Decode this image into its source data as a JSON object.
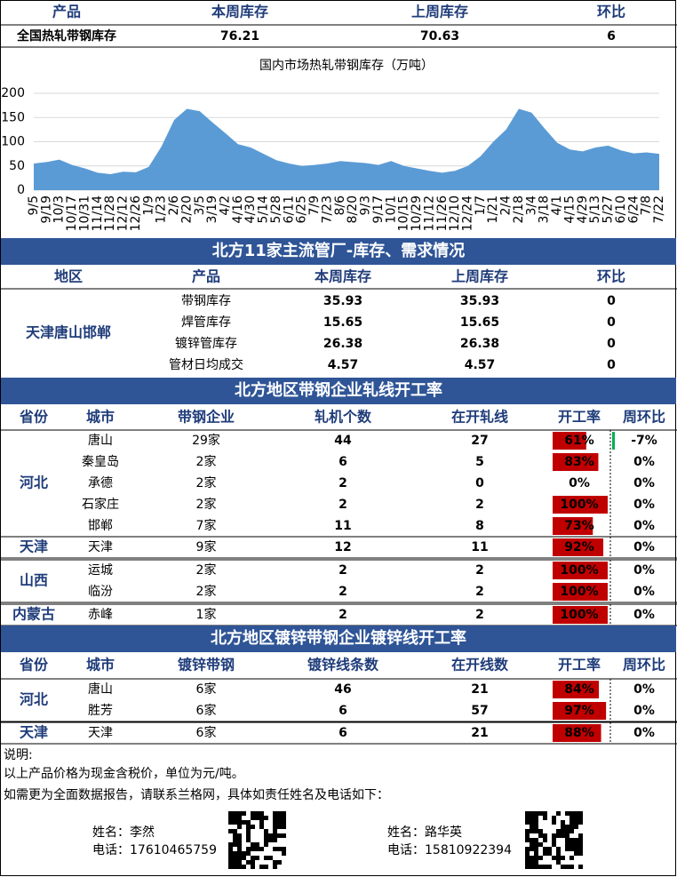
{
  "summary_table": {
    "header": [
      "产品",
      "本周库存",
      "上周库存",
      "环比"
    ],
    "rows": [
      [
        "全国热轧带钢库存",
        "76.21",
        "70.63",
        "6"
      ]
    ]
  },
  "chart_data": {
    "type": "area",
    "title": "国内市场热轧带钢库存（万吨）",
    "categories": [
      "9/5",
      "9/19",
      "10/3",
      "10/17",
      "10/31",
      "11/14",
      "11/28",
      "12/12",
      "12/26",
      "1/9",
      "1/23",
      "2/6",
      "2/20",
      "3/5",
      "3/19",
      "4/2",
      "4/16",
      "4/30",
      "5/14",
      "5/28",
      "6/11",
      "6/25",
      "7/9",
      "7/23",
      "8/6",
      "8/20",
      "9/3",
      "9/17",
      "10/1",
      "10/15",
      "10/29",
      "11/12",
      "11/26",
      "12/10",
      "12/24",
      "1/7",
      "1/21",
      "2/4",
      "2/18",
      "3/4",
      "3/18",
      "4/1",
      "4/15",
      "4/29",
      "5/13",
      "5/27",
      "6/10",
      "6/24",
      "7/8",
      "7/22"
    ],
    "values": [
      55,
      58,
      63,
      52,
      45,
      36,
      33,
      38,
      37,
      48,
      90,
      145,
      168,
      163,
      140,
      118,
      95,
      88,
      75,
      62,
      55,
      50,
      52,
      55,
      60,
      58,
      56,
      52,
      60,
      50,
      45,
      40,
      36,
      40,
      50,
      70,
      100,
      125,
      168,
      160,
      128,
      98,
      84,
      80,
      88,
      92,
      82,
      76,
      78,
      75
    ],
    "color": "#5B9BD5",
    "ylim": [
      0,
      200
    ],
    "yticks": [
      0,
      50,
      100,
      150,
      200
    ],
    "grid": true
  },
  "pipe_section": {
    "title": "北方11家主流管厂-库存、需求情况",
    "header": [
      "地区",
      "产品",
      "本周库存",
      "上周库存",
      "环比"
    ],
    "region": "天津唐山邯郸",
    "rows": [
      [
        "带钢库存",
        "35.93",
        "35.93",
        "0"
      ],
      [
        "焊管库存",
        "15.65",
        "15.65",
        "0"
      ],
      [
        "镀锌管库存",
        "26.38",
        "26.38",
        "0"
      ],
      [
        "管材日均成交",
        "4.57",
        "4.57",
        "0"
      ]
    ]
  },
  "strip_section": {
    "title": "北方地区带钢企业轧线开工率",
    "header": [
      "省份",
      "城市",
      "带钢企业",
      "轧机个数",
      "在开轧线",
      "开工率",
      "周环比"
    ],
    "groups": [
      {
        "province": "河北",
        "rows": [
          [
            "唐山",
            "29家",
            "44",
            "27",
            {
              "value": 61,
              "label": "61%"
            },
            "-7%"
          ],
          [
            "秦皇岛",
            "2家",
            "6",
            "5",
            {
              "value": 83,
              "label": "83%"
            },
            "0%"
          ],
          [
            "承德",
            "2家",
            "2",
            "0",
            {
              "value": 0,
              "label": "0%"
            },
            "0%"
          ],
          [
            "石家庄",
            "2家",
            "2",
            "2",
            {
              "value": 100,
              "label": "100%"
            },
            "0%"
          ],
          [
            "邯郸",
            "7家",
            "11",
            "8",
            {
              "value": 73,
              "label": "73%"
            },
            "0%"
          ]
        ]
      },
      {
        "province": "天津",
        "rows": [
          [
            "天津",
            "9家",
            "12",
            "11",
            {
              "value": 92,
              "label": "92%"
            },
            "0%"
          ]
        ]
      },
      {
        "province": "山西",
        "rows": [
          [
            "运城",
            "2家",
            "2",
            "2",
            {
              "value": 100,
              "label": "100%"
            },
            "0%"
          ],
          [
            "临汾",
            "2家",
            "2",
            "2",
            {
              "value": 100,
              "label": "100%"
            },
            "0%"
          ]
        ]
      },
      {
        "province": "内蒙古",
        "rows": [
          [
            "赤峰",
            "1家",
            "2",
            "2",
            {
              "value": 100,
              "label": "100%"
            },
            "0%"
          ]
        ]
      }
    ]
  },
  "galv_section": {
    "title": "北方地区镀锌带钢企业镀锌线开工率",
    "header": [
      "省份",
      "城市",
      "镀锌带钢",
      "镀锌线条数",
      "在开线数",
      "开工率",
      "周环比"
    ],
    "groups": [
      {
        "province": "河北",
        "rows": [
          [
            "唐山",
            "6家",
            "46",
            "21",
            {
              "value": 84,
              "label": "84%"
            },
            "0%"
          ],
          [
            "胜芳",
            "6家",
            "6",
            "57",
            {
              "value": 97,
              "label": "97%"
            },
            "0%"
          ]
        ]
      },
      {
        "province": "天津",
        "rows": [
          [
            "天津",
            "6家",
            "6",
            "21",
            {
              "value": 88,
              "label": "88%"
            },
            "0%"
          ]
        ]
      }
    ]
  },
  "notes": {
    "heading": "说明:",
    "lines": [
      "以上产品价格为现金含税价，单位为元/吨。",
      "如需更为全面数据报告，请联系兰格网，具体如责任姓名及电话如下："
    ]
  },
  "contacts": [
    {
      "name": "姓名：李然",
      "phone": "电话：17610465759"
    },
    {
      "name": "姓名：路华英",
      "phone": "电话：15810922394"
    }
  ]
}
